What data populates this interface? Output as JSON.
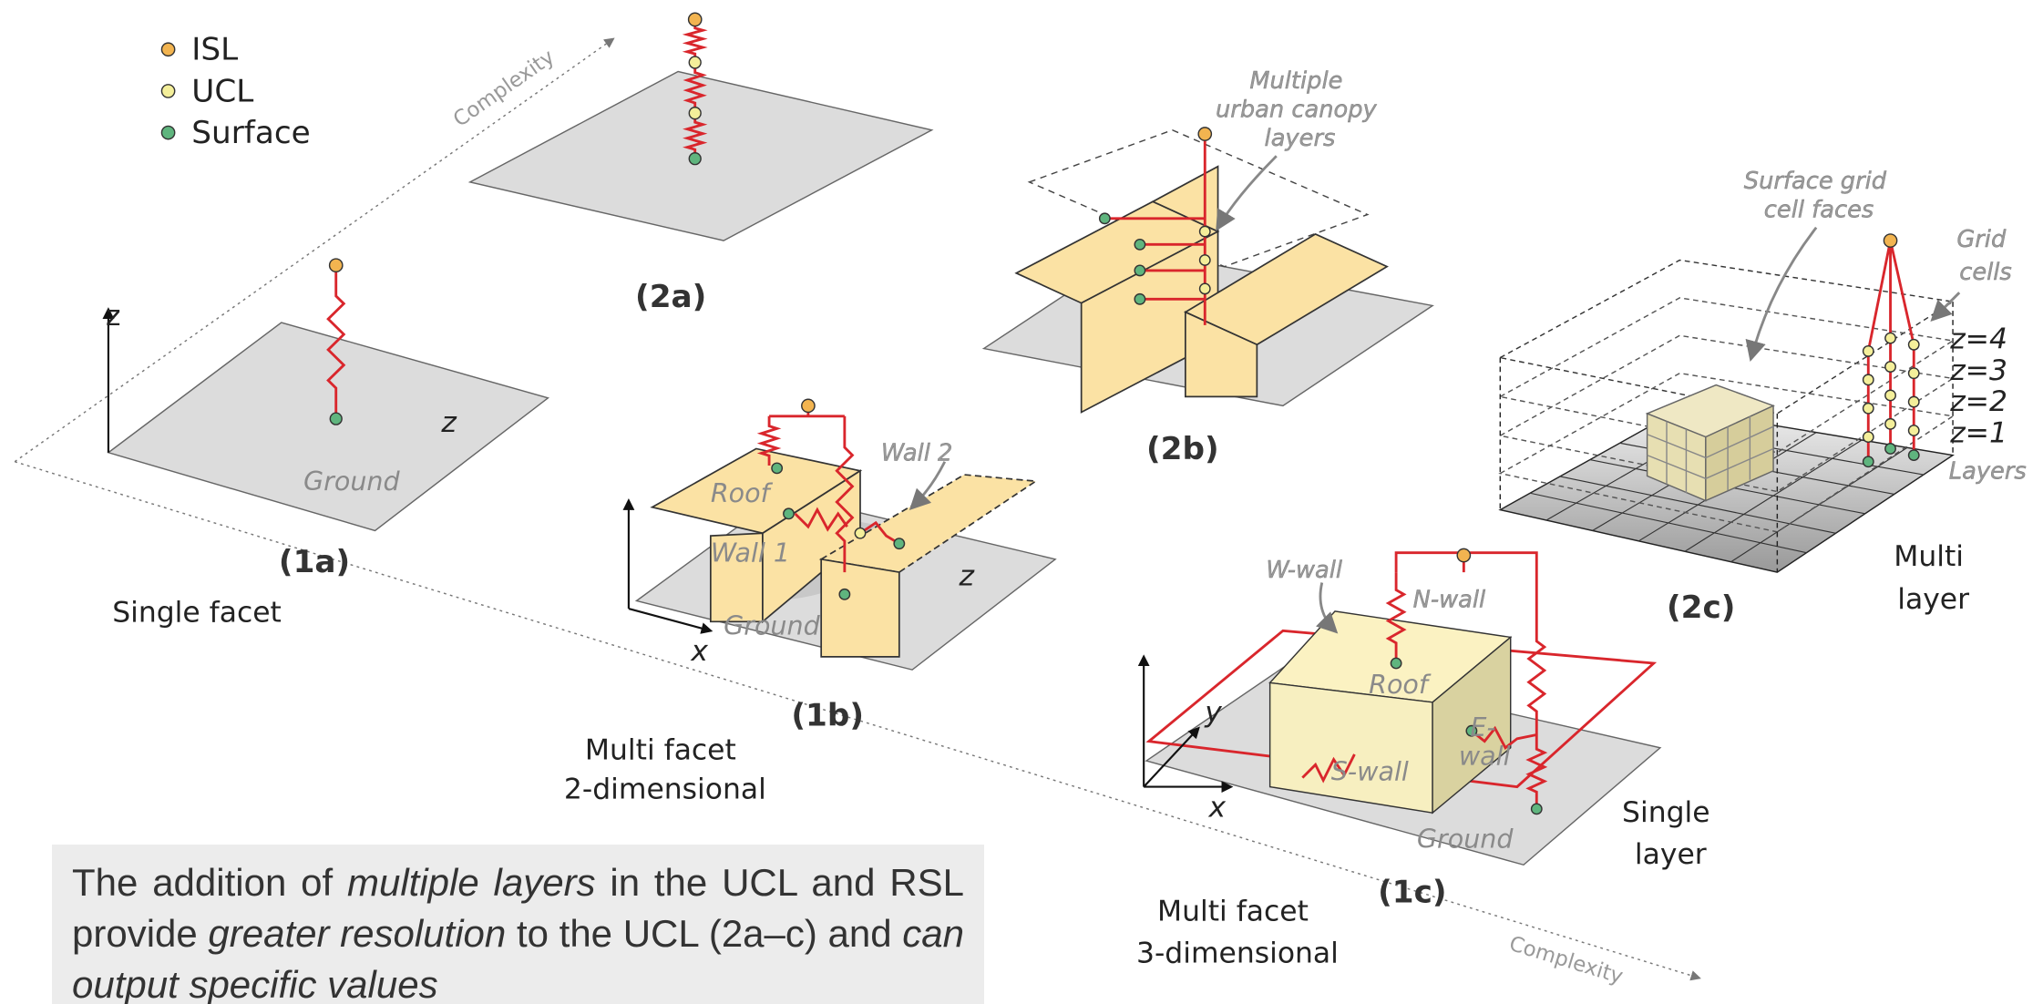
{
  "legend": [
    {
      "label": "ISL",
      "color": "#f2b450"
    },
    {
      "label": "UCL",
      "color": "#f4ef9a"
    },
    {
      "label": "Surface",
      "color": "#5fb57e"
    }
  ],
  "complexity": [
    "Complexity",
    "Complexity"
  ],
  "panel_1a": {
    "caption": "(1a)",
    "axis_z": "z",
    "z": "z",
    "ground": "Ground",
    "description": "Single facet"
  },
  "panel_2a": {
    "caption": "(2a)"
  },
  "panel_2b": {
    "caption": "(2b)",
    "annotation": [
      "Multiple",
      "urban canopy",
      "layers"
    ]
  },
  "panel_2c": {
    "caption": "(2c)",
    "annotation": [
      "Surface grid",
      "cell faces"
    ],
    "grid_cells": [
      "Grid",
      "cells"
    ],
    "levels": [
      "z=4",
      "z=3",
      "z=2",
      "z=1"
    ],
    "layers": "Layers",
    "description": [
      "Multi",
      "layer"
    ]
  },
  "panel_1b": {
    "caption": "(1b)",
    "roof": "Roof",
    "wall_1": "Wall 1",
    "wall_2": "Wall 2",
    "ground": "Ground",
    "z": "z",
    "x": "x",
    "description": [
      "Multi facet",
      "2-dimensional"
    ]
  },
  "panel_1c": {
    "caption": "(1c)",
    "w_wall": "W-wall",
    "n_wall": "N-wall",
    "roof": "Roof",
    "e_wall": [
      "E-",
      "wall"
    ],
    "s_wall": "S-wall",
    "ground": "Ground",
    "y": "y",
    "x": "x",
    "description_right": [
      "Single",
      "layer"
    ],
    "description": [
      "Multi facet",
      "3-dimensional"
    ]
  },
  "paragraph": {
    "segments": [
      {
        "text": "The addition of ",
        "italic": false
      },
      {
        "text": "multiple layers",
        "italic": true
      },
      {
        "text": " in the UCL and RSL provide ",
        "italic": false
      },
      {
        "text": "greater resolution",
        "italic": true
      },
      {
        "text": " to the UCL (2a–c) and ",
        "italic": false
      },
      {
        "text": "can output specific values",
        "italic": true
      }
    ]
  }
}
